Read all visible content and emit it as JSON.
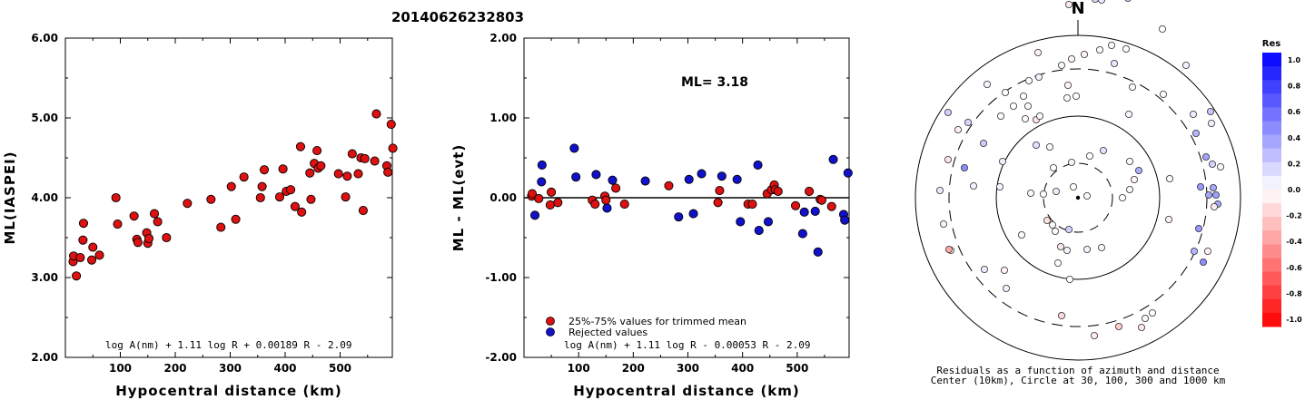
{
  "page_title": "20140626232803",
  "colors": {
    "trimmed": "#dd1111",
    "rejected": "#1111cc",
    "axis": "#000000"
  },
  "chart_data": [
    {
      "id": "ml-vs-distance",
      "type": "scatter",
      "title": "",
      "xlabel": "Hypocentral distance (km)",
      "ylabel": "ML(IASPEI)",
      "xlim": [
        0,
        595
      ],
      "ylim": [
        2.0,
        6.0
      ],
      "xticks": [
        100,
        200,
        300,
        400,
        500
      ],
      "yticks": [
        "2.00",
        "3.00",
        "4.00",
        "5.00",
        "6.00"
      ],
      "formula": "log A(nm) + 1.11 log R + 0.00189 R - 2.09",
      "points": [
        [
          14,
          3.2
        ],
        [
          15,
          3.27
        ],
        [
          20,
          3.02
        ],
        [
          27,
          3.25
        ],
        [
          32,
          3.47
        ],
        [
          33,
          3.68
        ],
        [
          48,
          3.22
        ],
        [
          50,
          3.38
        ],
        [
          62,
          3.28
        ],
        [
          92,
          4.0
        ],
        [
          95,
          3.67
        ],
        [
          125,
          3.77
        ],
        [
          130,
          3.48
        ],
        [
          132,
          3.44
        ],
        [
          148,
          3.56
        ],
        [
          150,
          3.43
        ],
        [
          152,
          3.49
        ],
        [
          162,
          3.8
        ],
        [
          168,
          3.7
        ],
        [
          184,
          3.5
        ],
        [
          222,
          3.93
        ],
        [
          265,
          3.98
        ],
        [
          283,
          3.63
        ],
        [
          302,
          4.14
        ],
        [
          310,
          3.73
        ],
        [
          325,
          4.26
        ],
        [
          355,
          4.0
        ],
        [
          358,
          4.14
        ],
        [
          362,
          4.35
        ],
        [
          390,
          4.01
        ],
        [
          396,
          4.36
        ],
        [
          402,
          4.08
        ],
        [
          410,
          4.1
        ],
        [
          418,
          3.89
        ],
        [
          428,
          4.64
        ],
        [
          430,
          3.82
        ],
        [
          445,
          4.31
        ],
        [
          447,
          3.98
        ],
        [
          453,
          4.43
        ],
        [
          458,
          4.59
        ],
        [
          460,
          4.37
        ],
        [
          465,
          4.4
        ],
        [
          497,
          4.3
        ],
        [
          510,
          4.01
        ],
        [
          513,
          4.27
        ],
        [
          522,
          4.55
        ],
        [
          533,
          4.3
        ],
        [
          538,
          4.5
        ],
        [
          542,
          3.84
        ],
        [
          545,
          4.49
        ],
        [
          563,
          4.46
        ],
        [
          566,
          5.05
        ],
        [
          585,
          4.4
        ],
        [
          587,
          4.32
        ],
        [
          593,
          4.92
        ],
        [
          596,
          4.62
        ]
      ]
    },
    {
      "id": "ml-residual-vs-distance",
      "type": "scatter",
      "title": "",
      "xlabel": "Hypocentral distance (km)",
      "ylabel": "ML - ML(evt)",
      "xlim": [
        0,
        595
      ],
      "ylim": [
        -2.0,
        2.0
      ],
      "xticks": [
        100,
        200,
        300,
        400,
        500
      ],
      "yticks": [
        "-2.00",
        "-1.00",
        "0.00",
        "1.00",
        "2.00"
      ],
      "ml_label": "ML= 3.18",
      "formula": "log A(nm) + 1.11 log R - 0.00053 R - 2.09",
      "legend": [
        {
          "label": "25%-75% values for trimmed mean",
          "color": "#dd1111"
        },
        {
          "label": "Rejected values",
          "color": "#1111cc"
        }
      ],
      "trimmed_points": [
        [
          14,
          0.02
        ],
        [
          15,
          0.05
        ],
        [
          27,
          -0.01
        ],
        [
          48,
          -0.09
        ],
        [
          50,
          0.07
        ],
        [
          62,
          -0.06
        ],
        [
          125,
          -0.03
        ],
        [
          130,
          -0.08
        ],
        [
          148,
          0.02
        ],
        [
          150,
          -0.03
        ],
        [
          168,
          0.12
        ],
        [
          184,
          -0.08
        ],
        [
          265,
          0.15
        ],
        [
          355,
          -0.06
        ],
        [
          358,
          0.09
        ],
        [
          410,
          -0.08
        ],
        [
          418,
          -0.08
        ],
        [
          445,
          0.05
        ],
        [
          453,
          0.1
        ],
        [
          458,
          0.16
        ],
        [
          460,
          0.1
        ],
        [
          465,
          0.08
        ],
        [
          497,
          -0.1
        ],
        [
          522,
          0.08
        ],
        [
          542,
          -0.02
        ],
        [
          545,
          -0.03
        ],
        [
          563,
          -0.11
        ]
      ],
      "rejected_points": [
        [
          20,
          -0.22
        ],
        [
          32,
          0.2
        ],
        [
          33,
          0.41
        ],
        [
          92,
          0.62
        ],
        [
          95,
          0.26
        ],
        [
          132,
          0.29
        ],
        [
          152,
          -0.13
        ],
        [
          162,
          0.22
        ],
        [
          222,
          0.21
        ],
        [
          283,
          -0.24
        ],
        [
          302,
          0.23
        ],
        [
          310,
          -0.2
        ],
        [
          325,
          0.3
        ],
        [
          362,
          0.27
        ],
        [
          390,
          0.23
        ],
        [
          396,
          -0.3
        ],
        [
          428,
          0.41
        ],
        [
          430,
          -0.41
        ],
        [
          447,
          -0.3
        ],
        [
          510,
          -0.45
        ],
        [
          513,
          -0.18
        ],
        [
          533,
          -0.17
        ],
        [
          538,
          -0.68
        ],
        [
          566,
          0.48
        ],
        [
          585,
          -0.21
        ],
        [
          587,
          -0.28
        ],
        [
          593,
          0.31
        ]
      ]
    },
    {
      "id": "azimuth-residuals",
      "type": "scatter",
      "title": "",
      "north_label": "N",
      "caption_line1": "Residuals as a function of azimuth and distance",
      "caption_line2": "Center (10km), Circle at 30, 100, 300 and 1000 km",
      "circles_km": [
        30,
        100,
        300,
        1000
      ],
      "colorbar_title": "Res",
      "colorbar_ticks": [
        "1.0",
        "0.8",
        "0.6",
        "0.4",
        "0.2",
        "0.0",
        "-0.2",
        "-0.4",
        "-0.6",
        "-0.8",
        "-1.0"
      ],
      "stations": [
        [
          -9,
          90,
          0.0
        ],
        [
          -19,
          54,
          -0.1
        ],
        [
          -28,
          30,
          -0.02
        ],
        [
          -62,
          41,
          0.02
        ],
        [
          -22,
          72,
          0.0
        ],
        [
          10,
          57,
          0.05
        ],
        [
          26,
          55,
          0.03
        ],
        [
          -2,
          -112,
          0.0
        ],
        [
          -11,
          -124,
          -0.03
        ],
        [
          7,
          -158,
          -0.04
        ],
        [
          24,
          -163,
          0.02
        ],
        [
          37,
          -168,
          -0.02
        ],
        [
          53,
          -164,
          0.02
        ],
        [
          -44,
          -160,
          -0.04
        ],
        [
          -10,
          -213,
          -0.08
        ],
        [
          19,
          -219,
          0.15
        ],
        [
          26,
          -218,
          0.08
        ],
        [
          55,
          -220,
          0.2
        ],
        [
          -45,
          -227,
          -0.07
        ],
        [
          -43,
          -133,
          0.05
        ],
        [
          -18,
          -146,
          0.02
        ],
        [
          40,
          -148,
          0.1
        ],
        [
          67,
          -30,
          0.32
        ],
        [
          57,
          -40,
          -0.02
        ],
        [
          100,
          24,
          -0.05
        ],
        [
          101,
          -21,
          0.02
        ],
        [
          56,
          -92,
          0.03
        ],
        [
          60,
          -122,
          0.02
        ],
        [
          93,
          -186,
          0.0
        ],
        [
          119,
          -146,
          0.05
        ],
        [
          127,
          -92,
          0.07
        ],
        [
          147,
          -82,
          0.05
        ],
        [
          141,
          -45,
          0.36
        ],
        [
          130,
          -71,
          0.3
        ],
        [
          135,
          -12,
          0.4
        ],
        [
          144,
          -3,
          0.35
        ],
        [
          149,
          -11,
          0.35
        ],
        [
          152,
          -3,
          0.38
        ],
        [
          154,
          7,
          0.35
        ],
        [
          133,
          34,
          0.4
        ],
        [
          128,
          59,
          0.3
        ],
        [
          138,
          71,
          0.45
        ],
        [
          143,
          59,
          -0.04
        ],
        [
          150,
          10,
          -0.07
        ],
        [
          146,
          -95,
          0.22
        ],
        [
          157,
          -34,
          0.03
        ],
        [
          148,
          -37,
          0.18
        ],
        [
          94,
          -114,
          0.0
        ],
        [
          82,
          127,
          0.0
        ],
        [
          74,
          133,
          -0.03
        ],
        [
          18,
          152,
          -0.08
        ],
        [
          70,
          143,
          -0.1
        ],
        [
          45,
          142,
          -0.2
        ],
        [
          -18,
          130,
          -0.15
        ],
        [
          -81,
          80,
          -0.05
        ],
        [
          -140,
          58,
          -0.02
        ],
        [
          -125,
          -33,
          0.45
        ],
        [
          -104,
          -60,
          0.2
        ],
        [
          -121,
          -83,
          0.16
        ],
        [
          -143,
          -94,
          0.18
        ],
        [
          -85,
          -90,
          0.02
        ],
        [
          -54,
          -129,
          -0.02
        ],
        [
          -55,
          -101,
          -0.03
        ],
        [
          -71,
          -101,
          0.0
        ],
        [
          -46,
          -86,
          -0.11
        ],
        [
          -58,
          -87,
          -0.02
        ],
        [
          -46,
          -58,
          0.12
        ],
        [
          -60,
          -112,
          0.0
        ],
        [
          -86,
          -12,
          0.04
        ],
        [
          -42,
          -90,
          0.03
        ],
        [
          -80,
          -116,
          0.02
        ],
        [
          -148,
          29,
          -0.05
        ],
        [
          -142,
          57,
          -0.35
        ],
        [
          -115,
          -13,
          0.05
        ],
        [
          -83,
          -40,
          0.06
        ],
        [
          -12,
          -110,
          0.02
        ],
        [
          -12,
          58,
          0.04
        ],
        [
          -5,
          -12,
          0.0
        ],
        [
          -27,
          -33,
          0.01
        ],
        [
          -34,
          25,
          -0.13
        ],
        [
          -24,
          -7,
          0.07
        ],
        [
          -52,
          -5,
          0.03
        ],
        [
          -10,
          35,
          0.18
        ],
        [
          -25,
          37,
          -0.01
        ],
        [
          -38,
          -4,
          0.0
        ],
        [
          -7,
          -153,
          -0.05
        ],
        [
          -132,
          -75,
          -0.06
        ],
        [
          -152,
          -8,
          0.08
        ],
        [
          -143,
          -42,
          -0.1
        ],
        [
          -103,
          79,
          0.08
        ],
        [
          -79,
          100,
          0.05
        ],
        [
          -100,
          -125,
          0.03
        ],
        [
          13,
          -46,
          0.01
        ],
        [
          -7,
          -39,
          -0.03
        ],
        [
          28,
          -52,
          0.11
        ],
        [
          57,
          -9,
          0.03
        ],
        [
          62,
          -20,
          -0.04
        ],
        [
          -31,
          -56,
          0.02
        ],
        [
          10,
          -2,
          0.02
        ],
        [
          49,
          0,
          0.0
        ]
      ]
    }
  ]
}
